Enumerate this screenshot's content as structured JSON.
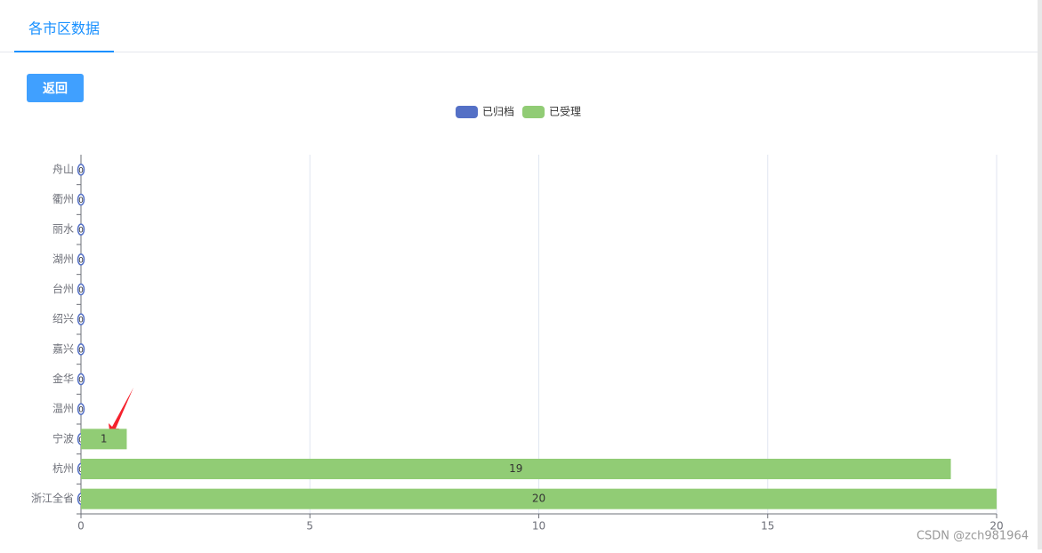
{
  "tab": {
    "label": "各市区数据"
  },
  "button": {
    "label": "返回"
  },
  "watermark": "CSDN @zch981964",
  "chart_data": {
    "type": "bar",
    "orientation": "horizontal",
    "stacked": true,
    "categories": [
      "浙江全省",
      "杭州",
      "宁波",
      "温州",
      "金华",
      "嘉兴",
      "绍兴",
      "台州",
      "湖州",
      "丽水",
      "衢州",
      "舟山"
    ],
    "series": [
      {
        "name": "已归档",
        "color": "#5470c6",
        "values": [
          0,
          0,
          0,
          0,
          0,
          0,
          0,
          0,
          0,
          0,
          0,
          0
        ]
      },
      {
        "name": "已受理",
        "color": "#91cc75",
        "values": [
          20,
          19,
          1,
          0,
          0,
          0,
          0,
          0,
          0,
          0,
          0,
          0
        ]
      }
    ],
    "xlim": [
      0,
      20
    ],
    "xticks": [
      0,
      5,
      10,
      15,
      20
    ],
    "grid": true,
    "legend": "top"
  }
}
